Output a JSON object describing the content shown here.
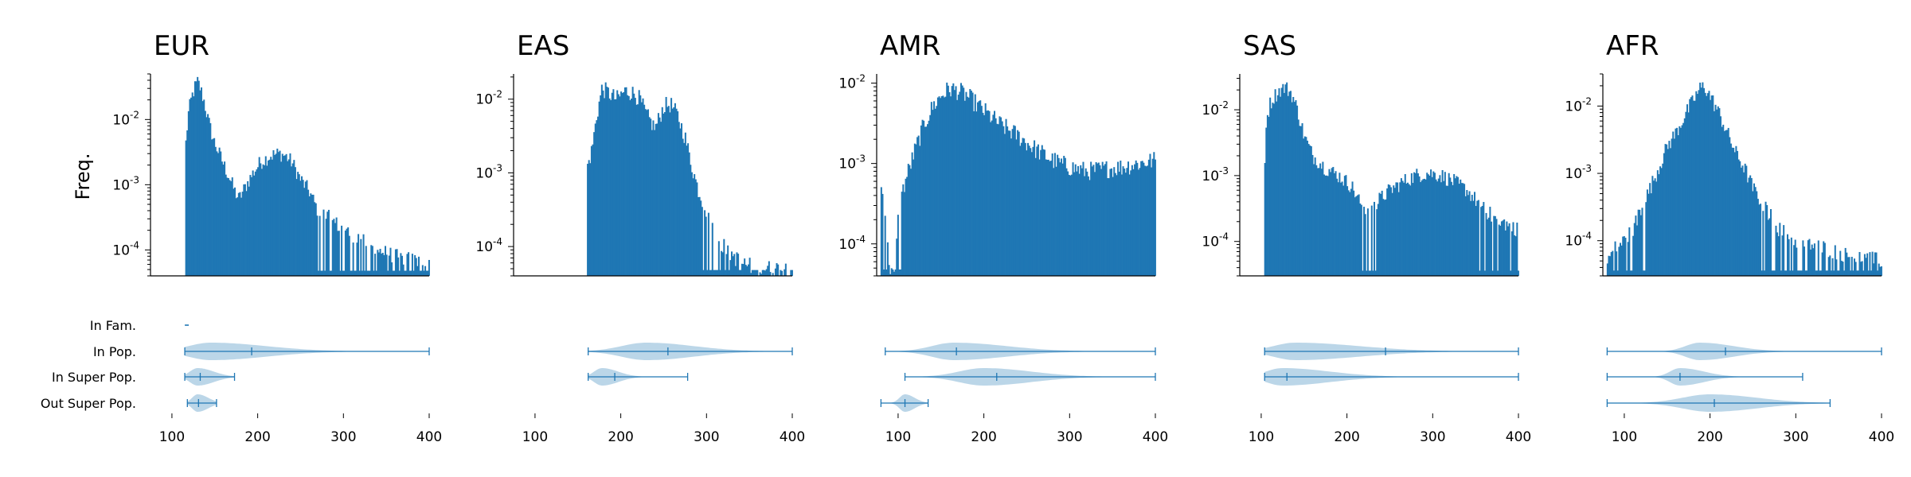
{
  "colors": {
    "bar": "#1f77b4",
    "violin_fill": "#1f77b4",
    "axis": "#000000",
    "background": "#ffffff"
  },
  "ylabel": "Freq.",
  "categories": [
    "In Fam.",
    "In Pop.",
    "In Super Pop.",
    "Out Super Pop."
  ],
  "chart_data": [
    {
      "type": "bar",
      "subtype": "histogram",
      "title": "EUR",
      "ylabel": "Freq.",
      "yscale": "log",
      "ylim": [
        4e-05,
        0.05
      ],
      "xlim": [
        75,
        400
      ],
      "yticks": [
        {
          "v": 0.0001,
          "label": "10^-4"
        },
        {
          "v": 0.001,
          "label": "10^-3"
        },
        {
          "v": 0.01,
          "label": "10^-2"
        }
      ],
      "xticks": [
        100,
        200,
        300,
        400
      ],
      "profile": [
        [
          115,
          0
        ],
        [
          116,
          0.004
        ],
        [
          119,
          0.012
        ],
        [
          123,
          0.022
        ],
        [
          127,
          0.032
        ],
        [
          130,
          0.038
        ],
        [
          133,
          0.03
        ],
        [
          137,
          0.02
        ],
        [
          142,
          0.01
        ],
        [
          148,
          0.005
        ],
        [
          155,
          0.003
        ],
        [
          162,
          0.0018
        ],
        [
          168,
          0.0012
        ],
        [
          173,
          0.0008
        ],
        [
          178,
          0.0006
        ],
        [
          185,
          0.0009
        ],
        [
          193,
          0.0014
        ],
        [
          203,
          0.0022
        ],
        [
          215,
          0.0028
        ],
        [
          225,
          0.003
        ],
        [
          232,
          0.0028
        ],
        [
          240,
          0.0022
        ],
        [
          250,
          0.0012
        ],
        [
          260,
          0.0008
        ],
        [
          270,
          0.0004
        ],
        [
          285,
          0.0003
        ],
        [
          300,
          0.0002
        ],
        [
          320,
          0.00015
        ],
        [
          340,
          0.0001
        ],
        [
          360,
          8e-05
        ],
        [
          380,
          7e-05
        ],
        [
          400,
          6e-05
        ]
      ],
      "violins": [
        {
          "category": "In Fam.",
          "min": 115,
          "max": 116,
          "median": 115
        },
        {
          "category": "In Pop.",
          "min": 115,
          "max": 400,
          "median": 193,
          "peak": 145,
          "spread": 40,
          "tail": 120
        },
        {
          "category": "In Super Pop.",
          "min": 115,
          "max": 173,
          "median": 133,
          "peak": 130,
          "spread": 14,
          "tail": 30
        },
        {
          "category": "Out Super Pop.",
          "min": 118,
          "max": 152,
          "median": 131,
          "peak": 130,
          "spread": 10,
          "tail": 18
        }
      ]
    },
    {
      "type": "bar",
      "subtype": "histogram",
      "title": "EAS",
      "yscale": "log",
      "ylim": [
        4e-05,
        0.022
      ],
      "xlim": [
        75,
        400
      ],
      "yticks": [
        {
          "v": 0.0001,
          "label": "10^-4"
        },
        {
          "v": 0.001,
          "label": "10^-3"
        },
        {
          "v": 0.01,
          "label": "10^-2"
        }
      ],
      "xticks": [
        100,
        200,
        300,
        400
      ],
      "profile": [
        [
          160,
          0
        ],
        [
          161,
          0.0012
        ],
        [
          166,
          0.002
        ],
        [
          172,
          0.006
        ],
        [
          178,
          0.014
        ],
        [
          186,
          0.012
        ],
        [
          195,
          0.01
        ],
        [
          205,
          0.013
        ],
        [
          215,
          0.012
        ],
        [
          222,
          0.01
        ],
        [
          230,
          0.006
        ],
        [
          240,
          0.004
        ],
        [
          250,
          0.008
        ],
        [
          258,
          0.0085
        ],
        [
          266,
          0.006
        ],
        [
          275,
          0.003
        ],
        [
          283,
          0.0012
        ],
        [
          290,
          0.0006
        ],
        [
          300,
          0.0003
        ],
        [
          310,
          0.00015
        ],
        [
          320,
          0.0001
        ],
        [
          340,
          6e-05
        ],
        [
          360,
          5e-05
        ],
        [
          380,
          5e-05
        ],
        [
          400,
          5e-05
        ]
      ],
      "violins": [
        {
          "category": "In Pop.",
          "min": 162,
          "max": 400,
          "median": 255,
          "peak": 230,
          "spread": 45,
          "tail": 80
        },
        {
          "category": "In Super Pop.",
          "min": 162,
          "max": 278,
          "median": 193,
          "peak": 178,
          "spread": 14,
          "tail": 30
        }
      ]
    },
    {
      "type": "bar",
      "subtype": "histogram",
      "title": "AMR",
      "yscale": "log",
      "ylim": [
        4e-05,
        0.013
      ],
      "xlim": [
        75,
        400
      ],
      "yticks": [
        {
          "v": 0.0001,
          "label": "10^-4"
        },
        {
          "v": 0.001,
          "label": "10^-3"
        },
        {
          "v": 0.01,
          "label": "10^-2"
        }
      ],
      "xticks": [
        100,
        200,
        300,
        400
      ],
      "profile": [
        [
          80,
          0.0004
        ],
        [
          83,
          0.0003
        ],
        [
          90,
          5e-05
        ],
        [
          96,
          5e-05
        ],
        [
          101,
          0.0003
        ],
        [
          110,
          0.0007
        ],
        [
          120,
          0.0015
        ],
        [
          130,
          0.003
        ],
        [
          140,
          0.005
        ],
        [
          150,
          0.007
        ],
        [
          160,
          0.0085
        ],
        [
          170,
          0.008
        ],
        [
          180,
          0.007
        ],
        [
          200,
          0.0045
        ],
        [
          220,
          0.003
        ],
        [
          240,
          0.0022
        ],
        [
          260,
          0.0015
        ],
        [
          280,
          0.0011
        ],
        [
          300,
          0.0009
        ],
        [
          320,
          0.0008
        ],
        [
          340,
          0.00085
        ],
        [
          360,
          0.0009
        ],
        [
          380,
          0.001
        ],
        [
          400,
          0.0011
        ]
      ],
      "violins": [
        {
          "category": "In Pop.",
          "min": 85,
          "max": 400,
          "median": 168,
          "peak": 165,
          "spread": 40,
          "tail": 110
        },
        {
          "category": "In Super Pop.",
          "min": 108,
          "max": 400,
          "median": 215,
          "peak": 200,
          "spread": 45,
          "tail": 80
        },
        {
          "category": "Out Super Pop.",
          "min": 80,
          "max": 135,
          "median": 108,
          "peak": 108,
          "spread": 10,
          "tail": 15
        }
      ]
    },
    {
      "type": "bar",
      "subtype": "histogram",
      "title": "SAS",
      "yscale": "log",
      "ylim": [
        3e-05,
        0.035
      ],
      "xlim": [
        75,
        400
      ],
      "yticks": [
        {
          "v": 0.0001,
          "label": "10^-4"
        },
        {
          "v": 0.001,
          "label": "10^-3"
        },
        {
          "v": 0.01,
          "label": "10^-2"
        }
      ],
      "xticks": [
        100,
        200,
        300,
        400
      ],
      "profile": [
        [
          104,
          0
        ],
        [
          105,
          0.006
        ],
        [
          110,
          0.012
        ],
        [
          115,
          0.016
        ],
        [
          122,
          0.02
        ],
        [
          128,
          0.022
        ],
        [
          135,
          0.018
        ],
        [
          142,
          0.01
        ],
        [
          150,
          0.004
        ],
        [
          160,
          0.002
        ],
        [
          175,
          0.0013
        ],
        [
          190,
          0.001
        ],
        [
          205,
          0.0007
        ],
        [
          215,
          0.0004
        ],
        [
          225,
          0.0003
        ],
        [
          235,
          0.0004
        ],
        [
          250,
          0.0006
        ],
        [
          265,
          0.0008
        ],
        [
          280,
          0.001
        ],
        [
          295,
          0.0011
        ],
        [
          310,
          0.001
        ],
        [
          325,
          0.0008
        ],
        [
          340,
          0.0006
        ],
        [
          360,
          0.0003
        ],
        [
          380,
          0.0002
        ],
        [
          400,
          0.00015
        ]
      ],
      "violins": [
        {
          "category": "In Pop.",
          "min": 104,
          "max": 400,
          "median": 245,
          "peak": 140,
          "spread": 40,
          "tail": 150
        },
        {
          "category": "In Super Pop.",
          "min": 104,
          "max": 400,
          "median": 130,
          "peak": 125,
          "spread": 30,
          "tail": 110
        }
      ]
    },
    {
      "type": "bar",
      "subtype": "histogram",
      "title": "AFR",
      "yscale": "log",
      "ylim": [
        3e-05,
        0.03
      ],
      "xlim": [
        75,
        400
      ],
      "yticks": [
        {
          "v": 0.0001,
          "label": "10^-4"
        },
        {
          "v": 0.001,
          "label": "10^-3"
        },
        {
          "v": 0.01,
          "label": "10^-2"
        }
      ],
      "xticks": [
        100,
        200,
        300,
        400
      ],
      "profile": [
        [
          80,
          5e-05
        ],
        [
          90,
          8e-05
        ],
        [
          100,
          0.0001
        ],
        [
          110,
          0.00015
        ],
        [
          120,
          0.0003
        ],
        [
          130,
          0.0006
        ],
        [
          140,
          0.0012
        ],
        [
          150,
          0.0025
        ],
        [
          160,
          0.004
        ],
        [
          170,
          0.007
        ],
        [
          180,
          0.012
        ],
        [
          188,
          0.018
        ],
        [
          193,
          0.02
        ],
        [
          200,
          0.014
        ],
        [
          210,
          0.008
        ],
        [
          220,
          0.004
        ],
        [
          230,
          0.002
        ],
        [
          240,
          0.0012
        ],
        [
          250,
          0.0006
        ],
        [
          265,
          0.0003
        ],
        [
          280,
          0.00015
        ],
        [
          300,
          0.0001
        ],
        [
          330,
          8e-05
        ],
        [
          360,
          6e-05
        ],
        [
          400,
          5e-05
        ]
      ],
      "violins": [
        {
          "category": "In Pop.",
          "min": 80,
          "max": 400,
          "median": 218,
          "peak": 188,
          "spread": 26,
          "tail": 70
        },
        {
          "category": "In Super Pop.",
          "min": 80,
          "max": 308,
          "median": 165,
          "peak": 165,
          "spread": 18,
          "tail": 50
        },
        {
          "category": "Out Super Pop.",
          "min": 80,
          "max": 340,
          "median": 205,
          "peak": 200,
          "spread": 50,
          "tail": 70
        }
      ]
    }
  ]
}
